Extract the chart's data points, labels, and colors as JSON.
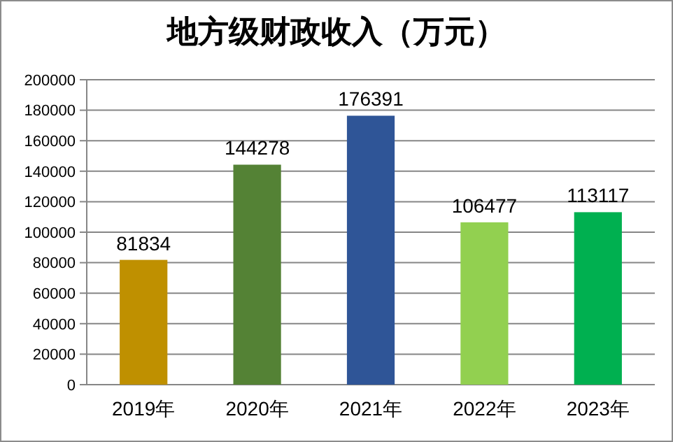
{
  "chart_data": {
    "type": "bar",
    "title": "地方级财政收入（万元）",
    "categories": [
      "2019年",
      "2020年",
      "2021年",
      "2022年",
      "2023年"
    ],
    "values": [
      81834,
      144278,
      176391,
      106477,
      113117
    ],
    "colors": [
      "#bf9000",
      "#548235",
      "#2f5597",
      "#92d050",
      "#00b050"
    ],
    "ylim": [
      0,
      200000
    ],
    "yticks": [
      0,
      20000,
      40000,
      60000,
      80000,
      100000,
      120000,
      140000,
      160000,
      180000,
      200000
    ],
    "grid": "y",
    "data_labels": true
  }
}
